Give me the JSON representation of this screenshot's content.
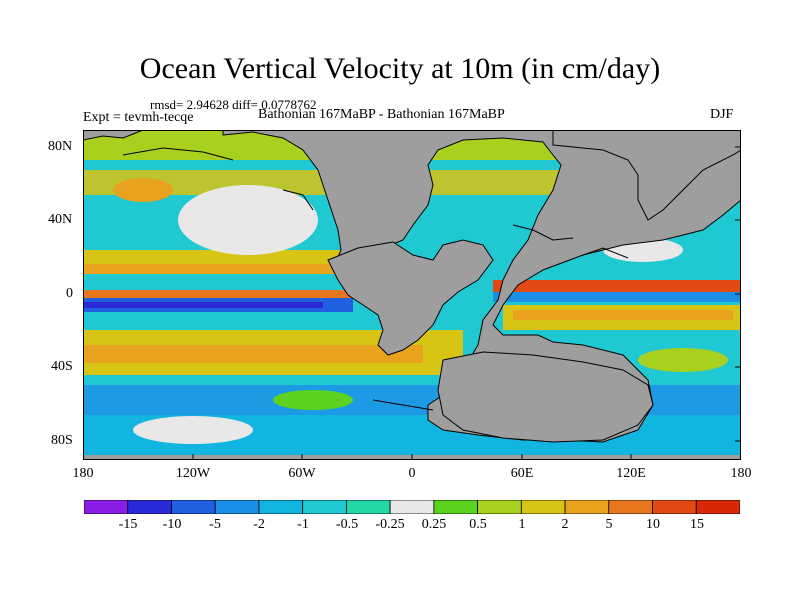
{
  "title": "Ocean Vertical Velocity at 10m (in cm/day)",
  "stats": "rmsd= 2.94628 diff= 0.0778762",
  "experiment": "Expt = tevmh-tecqe",
  "period": "Bathonian 167MaBP - Bathonian 167MaBP",
  "season": "DJF",
  "lat_labels": [
    "80N",
    "40N",
    "0",
    "40S",
    "80S"
  ],
  "lon_labels": [
    "180",
    "120W",
    "60W",
    "0",
    "60E",
    "120E",
    "180"
  ],
  "colorbar": {
    "labels": [
      "-15",
      "-10",
      "-5",
      "-2",
      "-1",
      "-0.5",
      "-0.25",
      "0.25",
      "0.5",
      "1",
      "2",
      "5",
      "10",
      "15"
    ],
    "colors": [
      "#8a1ee8",
      "#2a2ad8",
      "#1f5fe0",
      "#1b8ee8",
      "#12b4e0",
      "#20c8d2",
      "#22d6a8",
      "#e8e8e8",
      "#5ad21e",
      "#a8d01e",
      "#d8c414",
      "#e8a21e",
      "#e8761e",
      "#e24a14",
      "#d82808"
    ]
  },
  "colors": {
    "land": "#9e9e9e",
    "background": "#ffffff"
  }
}
